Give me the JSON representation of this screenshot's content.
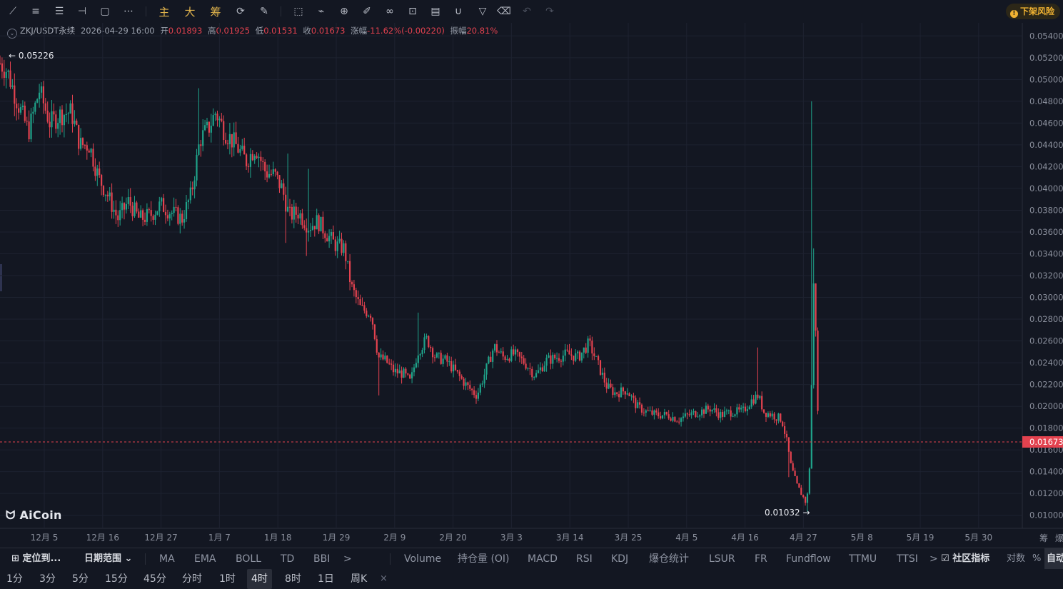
{
  "toolbar": {
    "icons": [
      "trend-line-icon",
      "parallel-lines-icon",
      "horizontal-lines-icon",
      "ray-icon",
      "rectangle-icon",
      "more-dots-icon"
    ],
    "cn_buttons": [
      "主",
      "大",
      "筹"
    ],
    "icons2": [
      "sync-icon",
      "brush-icon",
      "select-icon",
      "ruler-icon",
      "zoom-alert-icon",
      "pen-icon",
      "link-icon",
      "lock-icon",
      "note-icon",
      "magnet-icon",
      "filter-icon",
      "trash-icon",
      "undo-icon",
      "redo-icon"
    ],
    "risk_label": "下架风险",
    "risk_icon": "!"
  },
  "info": {
    "symbol": "ZKJ/USDT永续",
    "datetime": "2026-04-29 16:00",
    "open_label": "开",
    "open": "0.01893",
    "high_label": "高",
    "high": "0.01925",
    "low_label": "低",
    "low": "0.01531",
    "close_label": "收",
    "close": "0.01673",
    "change_label": "涨幅",
    "change": "-11.62%(-0.00220)",
    "amp_label": "振幅",
    "amp": "20.81%"
  },
  "logo": "AiCoin",
  "chart_data": {
    "type": "candlestick",
    "y_ticks": [
      "0.05400",
      "0.05200",
      "0.05000",
      "0.04800",
      "0.04600",
      "0.04400",
      "0.04200",
      "0.04000",
      "0.03800",
      "0.03600",
      "0.03400",
      "0.03200",
      "0.03000",
      "0.02800",
      "0.02600",
      "0.02400",
      "0.02200",
      "0.02000",
      "0.01800",
      "0.01600",
      "0.01400",
      "0.01200",
      "0.01000"
    ],
    "ylim": [
      0.0088,
      0.0552
    ],
    "x_ticks": [
      "12月 5",
      "12月 16",
      "12月 27",
      "1月 7",
      "1月 18",
      "1月 29",
      "2月 9",
      "2月 20",
      "3月 3",
      "3月 14",
      "3月 25",
      "4月 5",
      "4月 16",
      "4月 27",
      "5月 8",
      "5月 19",
      "5月 30"
    ],
    "current_price": "0.01673",
    "high_marker": "0.05226",
    "low_marker": "0.01032",
    "axis_right_labels": [
      "筹",
      "爆"
    ],
    "trend": [
      [
        0,
        0.0515
      ],
      [
        10,
        0.0508
      ],
      [
        25,
        0.0478
      ],
      [
        40,
        0.0452
      ],
      [
        55,
        0.049
      ],
      [
        70,
        0.046
      ],
      [
        85,
        0.0468
      ],
      [
        100,
        0.047
      ],
      [
        112,
        0.044
      ],
      [
        125,
        0.044
      ],
      [
        138,
        0.041
      ],
      [
        150,
        0.0395
      ],
      [
        165,
        0.0372
      ],
      [
        180,
        0.0388
      ],
      [
        195,
        0.0372
      ],
      [
        210,
        0.0375
      ],
      [
        225,
        0.0385
      ],
      [
        240,
        0.0378
      ],
      [
        255,
        0.0372
      ],
      [
        268,
        0.0395
      ],
      [
        280,
        0.0445
      ],
      [
        292,
        0.0455
      ],
      [
        302,
        0.047
      ],
      [
        315,
        0.0452
      ],
      [
        330,
        0.044
      ],
      [
        345,
        0.0425
      ],
      [
        358,
        0.0438
      ],
      [
        372,
        0.0415
      ],
      [
        385,
        0.0412
      ],
      [
        395,
        0.04
      ],
      [
        405,
        0.0375
      ],
      [
        418,
        0.0378
      ],
      [
        432,
        0.0365
      ],
      [
        445,
        0.037
      ],
      [
        458,
        0.0358
      ],
      [
        470,
        0.0348
      ],
      [
        482,
        0.0345
      ],
      [
        492,
        0.031
      ],
      [
        505,
        0.029
      ],
      [
        520,
        0.0285
      ],
      [
        530,
        0.0245
      ],
      [
        540,
        0.0242
      ],
      [
        552,
        0.0232
      ],
      [
        565,
        0.023
      ],
      [
        575,
        0.0222
      ],
      [
        585,
        0.025
      ],
      [
        598,
        0.0262
      ],
      [
        610,
        0.0245
      ],
      [
        625,
        0.0242
      ],
      [
        640,
        0.023
      ],
      [
        655,
        0.0218
      ],
      [
        668,
        0.021
      ],
      [
        680,
        0.0232
      ],
      [
        692,
        0.0255
      ],
      [
        705,
        0.0245
      ],
      [
        720,
        0.0248
      ],
      [
        735,
        0.024
      ],
      [
        750,
        0.0228
      ],
      [
        765,
        0.0242
      ],
      [
        780,
        0.0245
      ],
      [
        795,
        0.0248
      ],
      [
        810,
        0.0245
      ],
      [
        825,
        0.0258
      ],
      [
        838,
        0.0238
      ],
      [
        850,
        0.0218
      ],
      [
        862,
        0.0212
      ],
      [
        878,
        0.0215
      ],
      [
        892,
        0.02
      ],
      [
        905,
        0.0195
      ],
      [
        920,
        0.0192
      ],
      [
        935,
        0.0192
      ],
      [
        950,
        0.0188
      ],
      [
        965,
        0.0192
      ],
      [
        980,
        0.0195
      ],
      [
        995,
        0.0198
      ],
      [
        1010,
        0.0192
      ],
      [
        1025,
        0.0195
      ],
      [
        1040,
        0.0195
      ],
      [
        1052,
        0.0205
      ],
      [
        1062,
        0.021
      ],
      [
        1070,
        0.0195
      ],
      [
        1082,
        0.0192
      ],
      [
        1095,
        0.0188
      ],
      [
        1102,
        0.0168
      ],
      [
        1108,
        0.0145
      ],
      [
        1116,
        0.0128
      ],
      [
        1124,
        0.0118
      ],
      [
        1130,
        0.011
      ],
      [
        1134,
        0.0145
      ],
      [
        1137,
        0.0225
      ],
      [
        1140,
        0.032
      ],
      [
        1143,
        0.0265
      ],
      [
        1146,
        0.018
      ]
    ]
  },
  "indicators_row": {
    "locate": "定位到...",
    "date_range": "日期范围",
    "items": [
      "MA",
      "EMA",
      "BOLL",
      "TD",
      "BBI"
    ],
    "more": ">",
    "sub": [
      "Volume",
      "持仓量 (OI)",
      "MACD",
      "RSI",
      "KDJ",
      "爆仓统计",
      "LSUR",
      "FR",
      "Fundflow",
      "TTMU",
      "TTSI"
    ],
    "more2": ">",
    "community": "社区指标",
    "log": "对数",
    "pct": "%",
    "auto": "自动"
  },
  "intervals": {
    "items": [
      "1分",
      "3分",
      "5分",
      "15分",
      "45分",
      "分时",
      "1时",
      "4时",
      "8时",
      "1日",
      "周K"
    ],
    "active": "4时",
    "close": "×"
  }
}
